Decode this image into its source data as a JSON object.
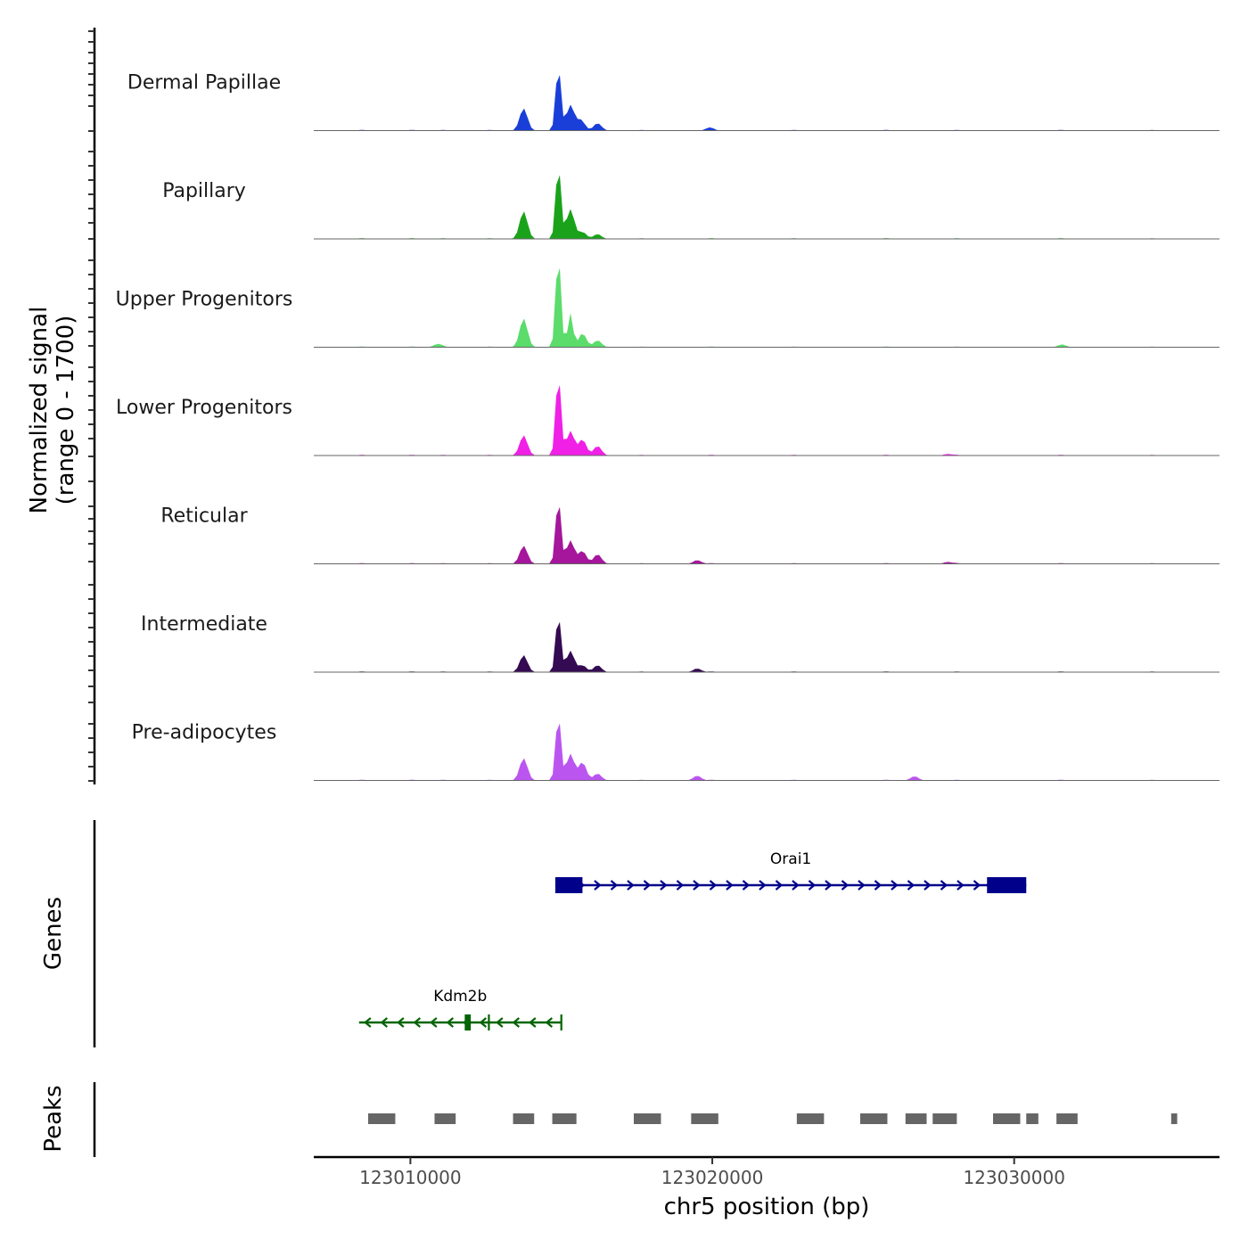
{
  "chart_data": {
    "type": "area",
    "title": "",
    "xlabel": "chr5 position (bp)",
    "ylabel_line1": "Normalized signal",
    "ylabel_line2": "(range 0 - 1700)",
    "ylim": [
      0,
      1700
    ],
    "xlim": [
      123006800,
      123036800
    ],
    "x_ticks": [
      123010000,
      123020000,
      123030000
    ],
    "x_tick_labels": [
      "123010000",
      "123020000",
      "123030000"
    ],
    "coverage_tracks": [
      {
        "name": "Dermal Papillae",
        "color": "#1a3fd9",
        "peaks": [
          {
            "x": 123013750,
            "h": 420
          },
          {
            "x": 123014900,
            "h": 1220
          },
          {
            "x": 123015300,
            "h": 480
          },
          {
            "x": 123015650,
            "h": 200
          },
          {
            "x": 123016200,
            "h": 140
          },
          {
            "x": 123019900,
            "h": 50
          }
        ]
      },
      {
        "name": "Papillary",
        "color": "#1aa31a",
        "peaks": [
          {
            "x": 123013750,
            "h": 520
          },
          {
            "x": 123014900,
            "h": 1400
          },
          {
            "x": 123015300,
            "h": 560
          },
          {
            "x": 123015700,
            "h": 130
          },
          {
            "x": 123016200,
            "h": 90
          }
        ]
      },
      {
        "name": "Upper Progenitors",
        "color": "#5bdc6b",
        "peaks": [
          {
            "x": 123013750,
            "h": 540
          },
          {
            "x": 123014900,
            "h": 1760
          },
          {
            "x": 123015300,
            "h": 640
          },
          {
            "x": 123015700,
            "h": 260
          },
          {
            "x": 123016200,
            "h": 130
          },
          {
            "x": 123010900,
            "h": 60
          },
          {
            "x": 123031600,
            "h": 40
          }
        ]
      },
      {
        "name": "Lower Progenitors",
        "color": "#f020e6",
        "peaks": [
          {
            "x": 123013750,
            "h": 380
          },
          {
            "x": 123014900,
            "h": 1550
          },
          {
            "x": 123015300,
            "h": 460
          },
          {
            "x": 123015700,
            "h": 300
          },
          {
            "x": 123016200,
            "h": 180
          },
          {
            "x": 123027800,
            "h": 30
          }
        ]
      },
      {
        "name": "Reticular",
        "color": "#a5169c",
        "peaks": [
          {
            "x": 123013750,
            "h": 340
          },
          {
            "x": 123014900,
            "h": 1250
          },
          {
            "x": 123015300,
            "h": 440
          },
          {
            "x": 123015700,
            "h": 240
          },
          {
            "x": 123016200,
            "h": 180
          },
          {
            "x": 123019500,
            "h": 70
          },
          {
            "x": 123027800,
            "h": 35
          }
        ]
      },
      {
        "name": "Intermediate",
        "color": "#340a52",
        "peaks": [
          {
            "x": 123013750,
            "h": 320
          },
          {
            "x": 123014900,
            "h": 1100
          },
          {
            "x": 123015300,
            "h": 400
          },
          {
            "x": 123015700,
            "h": 130
          },
          {
            "x": 123016200,
            "h": 130
          },
          {
            "x": 123019500,
            "h": 70
          }
        ]
      },
      {
        "name": "Pre-adipocytes",
        "color": "#bb55f0",
        "peaks": [
          {
            "x": 123013750,
            "h": 420
          },
          {
            "x": 123014900,
            "h": 1250
          },
          {
            "x": 123015300,
            "h": 500
          },
          {
            "x": 123015700,
            "h": 340
          },
          {
            "x": 123016200,
            "h": 130
          },
          {
            "x": 123019500,
            "h": 90
          },
          {
            "x": 123026700,
            "h": 80
          }
        ]
      }
    ],
    "genes_title": "Genes",
    "genes": [
      {
        "name": "Orai1",
        "strand": "+",
        "color": "#00008b",
        "start": 123014800,
        "end": 123030400,
        "exons": [
          [
            123014800,
            123015700
          ],
          [
            123029100,
            123030400
          ]
        ]
      },
      {
        "name": "Kdm2b",
        "strand": "-",
        "color": "#006400",
        "start": 123008300,
        "end": 123015000,
        "exons": [
          [
            123011800,
            123012000
          ]
        ],
        "tick_marks": [
          123012600,
          123015000
        ]
      }
    ],
    "peaks_title": "Peaks",
    "peak_regions": [
      [
        123008600,
        123009500
      ],
      [
        123010800,
        123011500
      ],
      [
        123013400,
        123014100
      ],
      [
        123014700,
        123015500
      ],
      [
        123017400,
        123018300
      ],
      [
        123019300,
        123020200
      ],
      [
        123022800,
        123023700
      ],
      [
        123024900,
        123025800
      ],
      [
        123026400,
        123027100
      ],
      [
        123027300,
        123028100
      ],
      [
        123029300,
        123030200
      ],
      [
        123030400,
        123030800
      ],
      [
        123031400,
        123032100
      ],
      [
        123035200,
        123035400
      ]
    ]
  }
}
